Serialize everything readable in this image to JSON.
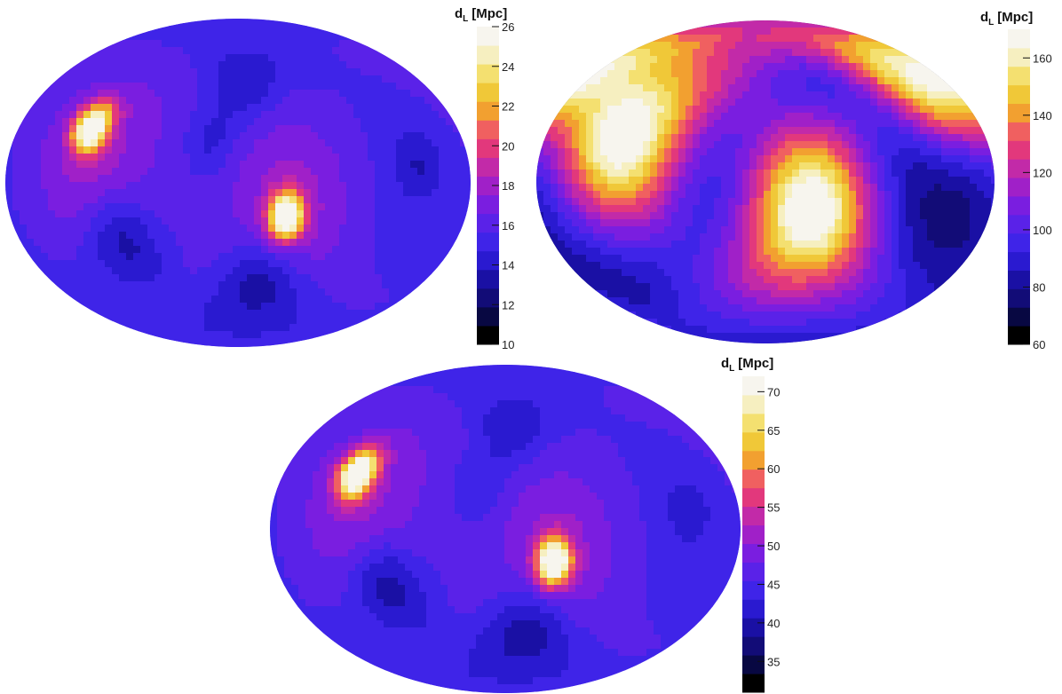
{
  "colormap": [
    "#000000",
    "#080842",
    "#120c77",
    "#1a10a4",
    "#2a1ad0",
    "#3f24e8",
    "#5a22e8",
    "#7a1ee0",
    "#a020c8",
    "#c22aa8",
    "#e2387c",
    "#f06060",
    "#f2a030",
    "#f0c838",
    "#f4e070",
    "#f6efc0",
    "#f7f5ee"
  ],
  "chart_data": [
    {
      "type": "heatmap",
      "projection": "mollweide",
      "colorbar": {
        "title": "d_L [Mpc]",
        "title_main": "d",
        "title_sub": "L",
        "title_unit": "[Mpc]",
        "range": [
          10,
          26
        ],
        "ticks": [
          10,
          12,
          14,
          16,
          18,
          20,
          22,
          24,
          26
        ],
        "tick_labels": [
          "10",
          "12",
          "14",
          "16",
          "18",
          "20",
          "22",
          "24",
          "26"
        ]
      },
      "field": {
        "background": 15,
        "blobs": [
          {
            "lon": -120,
            "lat": 30,
            "sigma": 9,
            "amp": 11
          },
          {
            "lon": 38,
            "lat": -18,
            "sigma": 9,
            "amp": 11
          },
          {
            "lon": -110,
            "lat": 10,
            "sigma": 38,
            "amp": 3
          },
          {
            "lon": 40,
            "lat": -10,
            "sigma": 38,
            "amp": 3
          },
          {
            "lon": -95,
            "lat": -30,
            "sigma": 18,
            "amp": -3
          },
          {
            "lon": 20,
            "lat": -55,
            "sigma": 18,
            "amp": -3
          },
          {
            "lon": 5,
            "lat": 55,
            "sigma": 15,
            "amp": -2
          },
          {
            "lon": -20,
            "lat": 25,
            "sigma": 12,
            "amp": -1.5
          },
          {
            "lon": 140,
            "lat": 10,
            "sigma": 12,
            "amp": -1.5
          }
        ]
      }
    },
    {
      "type": "heatmap",
      "projection": "mollweide",
      "colorbar": {
        "title": "d_L [Mpc]",
        "title_main": "d",
        "title_sub": "L",
        "title_unit": "[Mpc]",
        "range": [
          60,
          170
        ],
        "ticks": [
          60,
          80,
          100,
          120,
          140,
          160
        ],
        "tick_labels": [
          "60",
          "80",
          "100",
          "120",
          "140",
          "160"
        ]
      },
      "field": {
        "background": 68,
        "blobs": [
          {
            "lon": -115,
            "lat": 25,
            "sigma": 40,
            "amp": 100
          },
          {
            "lon": 35,
            "lat": -15,
            "sigma": 40,
            "amp": 100
          },
          {
            "lon": -120,
            "lat": 30,
            "sigma": 15,
            "amp": 10
          },
          {
            "lon": 38,
            "lat": -18,
            "sigma": 15,
            "amp": 10
          },
          {
            "lon": 150,
            "lat": 50,
            "sigma": 25,
            "amp": 60
          }
        ]
      }
    },
    {
      "type": "heatmap",
      "projection": "mollweide",
      "colorbar": {
        "title": "d_L [Mpc]",
        "title_main": "d",
        "title_sub": "L",
        "title_unit": "[Mpc]",
        "range": [
          31,
          72
        ],
        "ticks": [
          35,
          40,
          45,
          50,
          55,
          60,
          65,
          70
        ],
        "tick_labels": [
          "35",
          "40",
          "45",
          "50",
          "55",
          "60",
          "65",
          "70"
        ]
      },
      "field": {
        "background": 44,
        "blobs": [
          {
            "lon": -120,
            "lat": 30,
            "sigma": 9,
            "amp": 30
          },
          {
            "lon": 38,
            "lat": -18,
            "sigma": 9,
            "amp": 30
          },
          {
            "lon": -110,
            "lat": 10,
            "sigma": 38,
            "amp": 7
          },
          {
            "lon": 40,
            "lat": -10,
            "sigma": 38,
            "amp": 7
          },
          {
            "lon": -95,
            "lat": -30,
            "sigma": 18,
            "amp": -8
          },
          {
            "lon": 20,
            "lat": -55,
            "sigma": 18,
            "amp": -8
          },
          {
            "lon": 5,
            "lat": 55,
            "sigma": 15,
            "amp": -5
          },
          {
            "lon": -20,
            "lat": 25,
            "sigma": 12,
            "amp": -3
          },
          {
            "lon": 140,
            "lat": 10,
            "sigma": 12,
            "amp": -3
          }
        ]
      }
    }
  ]
}
